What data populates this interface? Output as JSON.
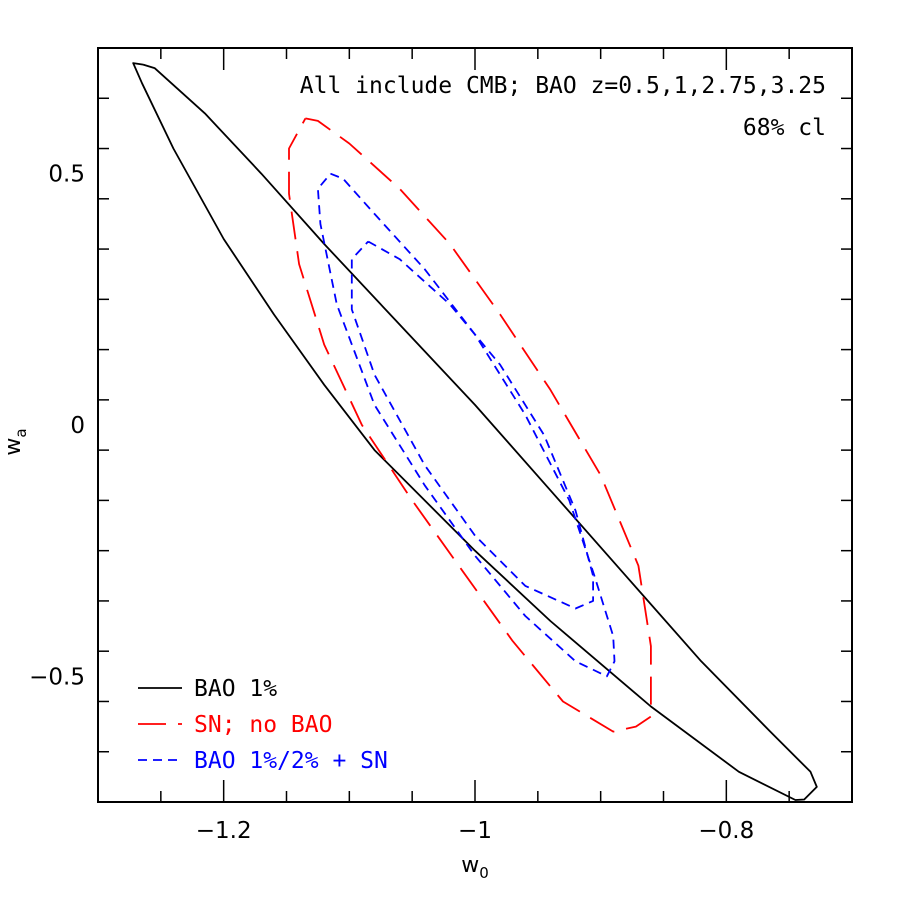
{
  "chart_data": {
    "type": "line",
    "xlabel": "w",
    "xlabel_sub": "0",
    "ylabel": "w",
    "ylabel_sub": "a",
    "xlim": [
      -1.3,
      -0.7
    ],
    "ylim": [
      -0.75,
      0.75
    ],
    "x_ticks": [
      -1.2,
      -1,
      -0.8
    ],
    "x_tick_labels": [
      "−1.2",
      "−1",
      "−0.8"
    ],
    "y_ticks": [
      -0.5,
      0,
      0.5
    ],
    "y_tick_labels": [
      "−0.5",
      "0",
      "0.5"
    ],
    "grid": false,
    "legend_position": "bottom-left",
    "annotations": [
      "All include CMB; BAO z=0.5,1,2.75,3.25",
      "68% cl"
    ],
    "series": [
      {
        "name": "BAO 1%",
        "color": "#000000",
        "dash": "solid",
        "x": [
          -1.264,
          -1.255,
          -1.215,
          -1.17,
          -1.12,
          -1.06,
          -1.0,
          -0.94,
          -0.88,
          -0.82,
          -0.765,
          -0.733,
          -0.728,
          -0.738,
          -0.745,
          -0.79,
          -0.86,
          -0.94,
          -1.0,
          -1.04,
          -1.08,
          -1.12,
          -1.16,
          -1.2,
          -1.24,
          -1.265,
          -1.272,
          -1.264
        ],
        "y": [
          0.717,
          0.71,
          0.62,
          0.5,
          0.36,
          0.2,
          0.04,
          -0.13,
          -0.3,
          -0.47,
          -0.61,
          -0.69,
          -0.72,
          -0.745,
          -0.746,
          -0.69,
          -0.56,
          -0.39,
          -0.25,
          -0.15,
          -0.05,
          0.08,
          0.22,
          0.37,
          0.55,
          0.68,
          0.72,
          0.717
        ]
      },
      {
        "name": "SN; no BAO",
        "color": "#ff0000",
        "dash": "long",
        "x": [
          -1.135,
          -1.125,
          -1.1,
          -1.06,
          -1.02,
          -0.98,
          -0.94,
          -0.9,
          -0.87,
          -0.86,
          -0.86,
          -0.872,
          -0.89,
          -0.93,
          -0.97,
          -1.01,
          -1.05,
          -1.09,
          -1.12,
          -1.14,
          -1.148,
          -1.148,
          -1.135
        ],
        "y": [
          0.61,
          0.605,
          0.56,
          0.47,
          0.36,
          0.22,
          0.07,
          -0.1,
          -0.28,
          -0.44,
          -0.58,
          -0.6,
          -0.61,
          -0.55,
          -0.43,
          -0.29,
          -0.15,
          0.0,
          0.16,
          0.32,
          0.46,
          0.55,
          0.61
        ]
      },
      {
        "name": "BAO 1%/2% + SN",
        "color": "#0000ff",
        "dash": "short",
        "x": [
          -1.115,
          -1.105,
          -1.08,
          -1.04,
          -1.0,
          -0.96,
          -0.925,
          -0.905,
          -0.89,
          -0.889,
          -0.895,
          -0.92,
          -0.96,
          -1.0,
          -1.04,
          -1.08,
          -1.11,
          -1.123,
          -1.125,
          -1.115
        ],
        "y": [
          0.5,
          0.49,
          0.42,
          0.31,
          0.18,
          0.02,
          -0.15,
          -0.3,
          -0.42,
          -0.47,
          -0.5,
          -0.47,
          -0.38,
          -0.26,
          -0.12,
          0.04,
          0.24,
          0.4,
          0.47,
          0.5
        ]
      },
      {
        "name": "",
        "color": "#0000ff",
        "dash": "short",
        "x": [
          -1.085,
          -1.06,
          -1.02,
          -0.98,
          -0.945,
          -0.92,
          -0.906,
          -0.906,
          -0.92,
          -0.96,
          -1.0,
          -1.04,
          -1.08,
          -1.098,
          -1.098,
          -1.085
        ],
        "y": [
          0.365,
          0.33,
          0.24,
          0.12,
          -0.02,
          -0.17,
          -0.3,
          -0.35,
          -0.365,
          -0.32,
          -0.22,
          -0.08,
          0.1,
          0.23,
          0.33,
          0.365
        ]
      }
    ]
  }
}
